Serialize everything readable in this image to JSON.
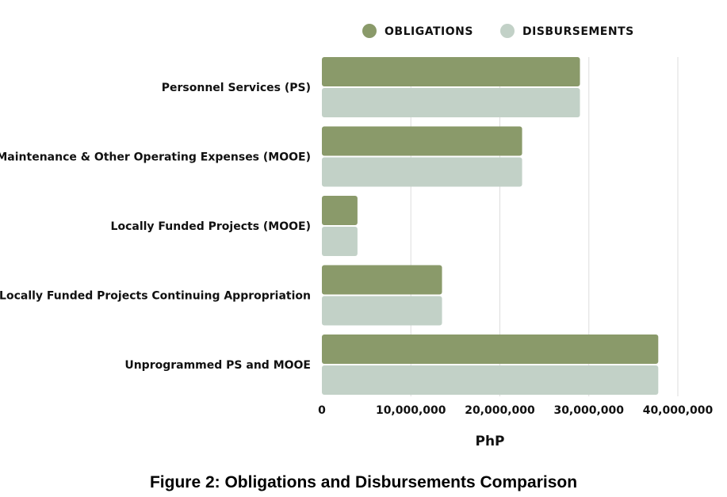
{
  "caption": "Figure 2: Obligations and Disbursements Comparison",
  "colors": {
    "obligations": "#8a9a6a",
    "disbursements": "#c2d1c7",
    "grid": "#dddddd"
  },
  "chart_data": {
    "type": "bar",
    "orientation": "horizontal",
    "categories": [
      "Personnel Services (PS)",
      "Maintenance & Other Operating Expenses (MOOE)",
      "Locally Funded Projects (MOOE)",
      "Locally Funded Projects Continuing Appropriation",
      "Unprogrammed PS and MOOE"
    ],
    "series": [
      {
        "name": "OBLIGATIONS",
        "values": [
          29000000,
          22500000,
          4000000,
          13500000,
          37800000
        ]
      },
      {
        "name": "DISBURSEMENTS",
        "values": [
          29000000,
          22500000,
          4000000,
          13500000,
          37800000
        ]
      }
    ],
    "xlabel": "PhP",
    "ylabel": "",
    "xlim": [
      0,
      40000000
    ],
    "xticks": [
      0,
      10000000,
      20000000,
      30000000,
      40000000
    ],
    "xtick_labels": [
      "0",
      "10,000,000",
      "20,000,000",
      "30,000,000",
      "40,000,000"
    ],
    "grid": "vertical",
    "legend_position": "top-right"
  }
}
